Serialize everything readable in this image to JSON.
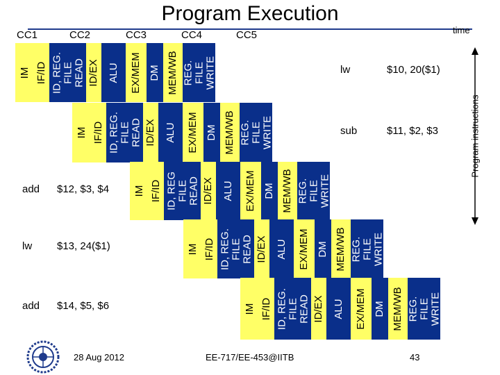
{
  "title": "Program Execution",
  "time_label": "time",
  "axis_label": "Program instructions",
  "clock_cycles": [
    "CC1",
    "CC2",
    "CC3",
    "CC4",
    "CC5"
  ],
  "instructions": [
    {
      "op": "lw",
      "args": "$10, 20($1)"
    },
    {
      "op": "sub",
      "args": "$11, $2, $3"
    },
    {
      "op": "add",
      "args": "$12, $3, $4"
    },
    {
      "op": "lw",
      "args": "$13, 24($1)"
    },
    {
      "op": "add",
      "args": "$14, $5, $6"
    }
  ],
  "stage_rows": [
    [
      "IM",
      "IF/ID",
      "ID, REG.\nFILE\nREAD",
      "ID/EX",
      "ALU",
      "EX/MEM",
      "DM",
      "MEM/WB",
      "REG.\nFILE\nWRITE"
    ],
    [
      "IM",
      "IF/ID",
      "ID, REG.\nFILE\nREAD",
      "ID/EX",
      "ALU",
      "EX/MEM",
      "DM",
      "MEM/WB",
      "REG.\nFILE\nWRITE"
    ],
    [
      "IM",
      "IF/ID",
      "ID, REG\nFILE\nREAD",
      "ID/EX",
      "ALU",
      "EX/MEM",
      "DM",
      "MEM/WB",
      "REG.\nFILE\nWRITE"
    ],
    [
      "IM",
      "IF/ID",
      "ID, REG.\nFILE\nREAD",
      "ID/EX",
      "ALU",
      "EX/MEM",
      "DM",
      "MEM/WB",
      "REG.\nFILE\nWRITE"
    ],
    [
      "IM",
      "IF/ID",
      "ID, REG.\nFILE\nREAD",
      "ID/EX",
      "ALU",
      "EX/MEM",
      "DM",
      "MEM/WB",
      "REG.\nFILE\nWRITE"
    ]
  ],
  "colors": {
    "box_blue": "#0a2f8a",
    "box_yellow": "#ffff66",
    "text_on_blue": "#ffffff",
    "text_on_yellow": "#000000",
    "accent": "#1f3b8c"
  },
  "footer": {
    "date": "28 Aug 2012",
    "course": "EE-717/EE-453@IITB",
    "page": "43"
  }
}
